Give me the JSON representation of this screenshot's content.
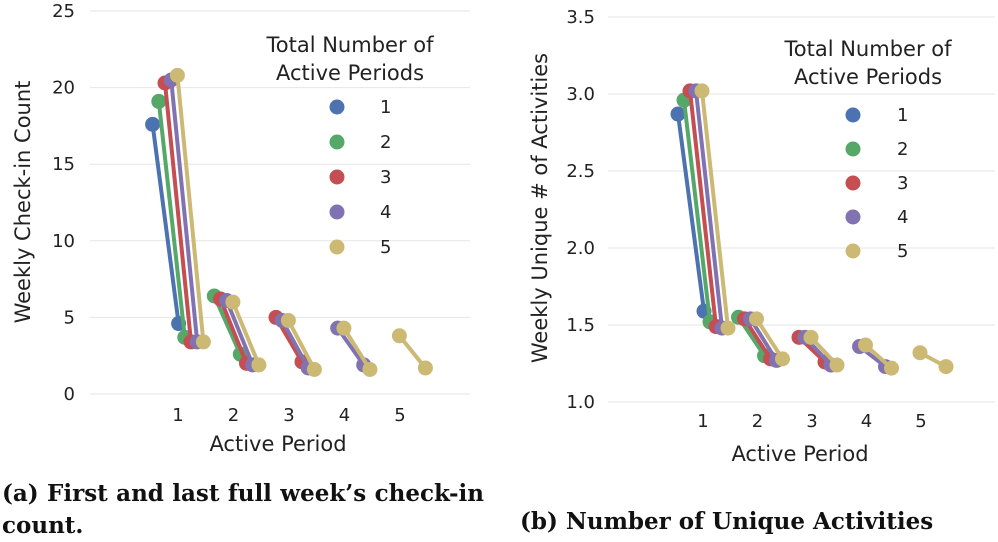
{
  "colors": {
    "series": [
      "#4c72b0",
      "#55a868",
      "#c44e52",
      "#8172b2",
      "#ccb974"
    ],
    "grid": "#e6e6e6",
    "text": "#222222"
  },
  "chart_data": [
    {
      "type": "line",
      "panel": "a",
      "xlabel": "Active Period",
      "ylabel": "Weekly Check-in Count",
      "x_ticks": [
        "1",
        "2",
        "3",
        "4",
        "5"
      ],
      "y_ticks": [
        "0",
        "5",
        "10",
        "15",
        "20",
        "25"
      ],
      "ylim": [
        0,
        25
      ],
      "grid": "horizontal",
      "legend": {
        "title": "Total Number of Active Periods",
        "placement": "top-right"
      },
      "series": [
        {
          "name": "1",
          "segments": [
            [
              17.6,
              4.6
            ]
          ]
        },
        {
          "name": "2",
          "segments": [
            [
              19.1,
              3.7
            ],
            [
              6.4,
              2.6
            ]
          ]
        },
        {
          "name": "3",
          "segments": [
            [
              20.3,
              3.4
            ],
            [
              6.2,
              2.0
            ],
            [
              5.0,
              2.1
            ]
          ]
        },
        {
          "name": "4",
          "segments": [
            [
              20.5,
              3.4
            ],
            [
              6.1,
              1.9
            ],
            [
              4.8,
              1.7
            ],
            [
              4.3,
              1.9
            ]
          ]
        },
        {
          "name": "5",
          "segments": [
            [
              20.8,
              3.4
            ],
            [
              6.0,
              1.9
            ],
            [
              4.8,
              1.6
            ],
            [
              4.3,
              1.6
            ],
            [
              3.8,
              1.7
            ]
          ]
        }
      ]
    },
    {
      "type": "line",
      "panel": "b",
      "xlabel": "Active Period",
      "ylabel": "Weekly Unique # of Activities",
      "x_ticks": [
        "1",
        "2",
        "3",
        "4",
        "5"
      ],
      "y_ticks": [
        "1.0",
        "1.5",
        "2.0",
        "2.5",
        "3.0",
        "3.5"
      ],
      "ylim": [
        1.0,
        3.5
      ],
      "grid": "horizontal",
      "legend": {
        "title": "Total Number of Active Periods",
        "placement": "top-right"
      },
      "series": [
        {
          "name": "1",
          "segments": [
            [
              2.87,
              1.59
            ]
          ]
        },
        {
          "name": "2",
          "segments": [
            [
              2.96,
              1.52
            ],
            [
              1.55,
              1.3
            ]
          ]
        },
        {
          "name": "3",
          "segments": [
            [
              3.02,
              1.49
            ],
            [
              1.54,
              1.28
            ],
            [
              1.42,
              1.26
            ]
          ]
        },
        {
          "name": "4",
          "segments": [
            [
              3.02,
              1.48
            ],
            [
              1.54,
              1.27
            ],
            [
              1.42,
              1.24
            ],
            [
              1.36,
              1.23
            ]
          ]
        },
        {
          "name": "5",
          "segments": [
            [
              3.02,
              1.48
            ],
            [
              1.54,
              1.28
            ],
            [
              1.42,
              1.24
            ],
            [
              1.37,
              1.22
            ],
            [
              1.32,
              1.23
            ]
          ]
        }
      ]
    }
  ],
  "captions": {
    "a": "(a) First and last full week’s check-in count.",
    "b": "(b) Number of Unique Activities"
  }
}
